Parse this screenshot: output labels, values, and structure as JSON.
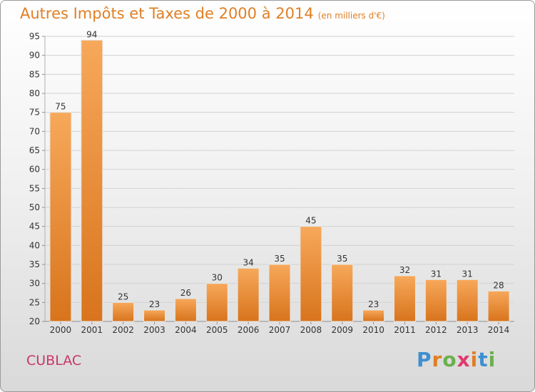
{
  "header": {
    "title": "Autres Impôts et Taxes de 2000 à 2014",
    "unit": "(en milliers d'€)"
  },
  "footer": {
    "place": "CUBLAC",
    "logo": [
      "P",
      "r",
      "o",
      "x",
      "i",
      "t",
      "i"
    ],
    "logo_colors": [
      "#3f8fd0",
      "#e07f24",
      "#6ab04c",
      "#e03a6a",
      "#e07f24",
      "#3f8fd0",
      "#6ab04c"
    ]
  },
  "chart_data": {
    "type": "bar",
    "categories": [
      "2000",
      "2001",
      "2002",
      "2003",
      "2004",
      "2005",
      "2006",
      "2007",
      "2008",
      "2009",
      "2010",
      "2011",
      "2012",
      "2013",
      "2014"
    ],
    "values": [
      75,
      94,
      25,
      23,
      26,
      30,
      34,
      35,
      45,
      35,
      23,
      32,
      31,
      31,
      28
    ],
    "ylim": [
      20,
      95
    ],
    "yticks": [
      20,
      25,
      30,
      35,
      40,
      45,
      50,
      55,
      60,
      65,
      70,
      75,
      80,
      85,
      90,
      95
    ],
    "grid": true,
    "bar_color": "#e8892e"
  }
}
